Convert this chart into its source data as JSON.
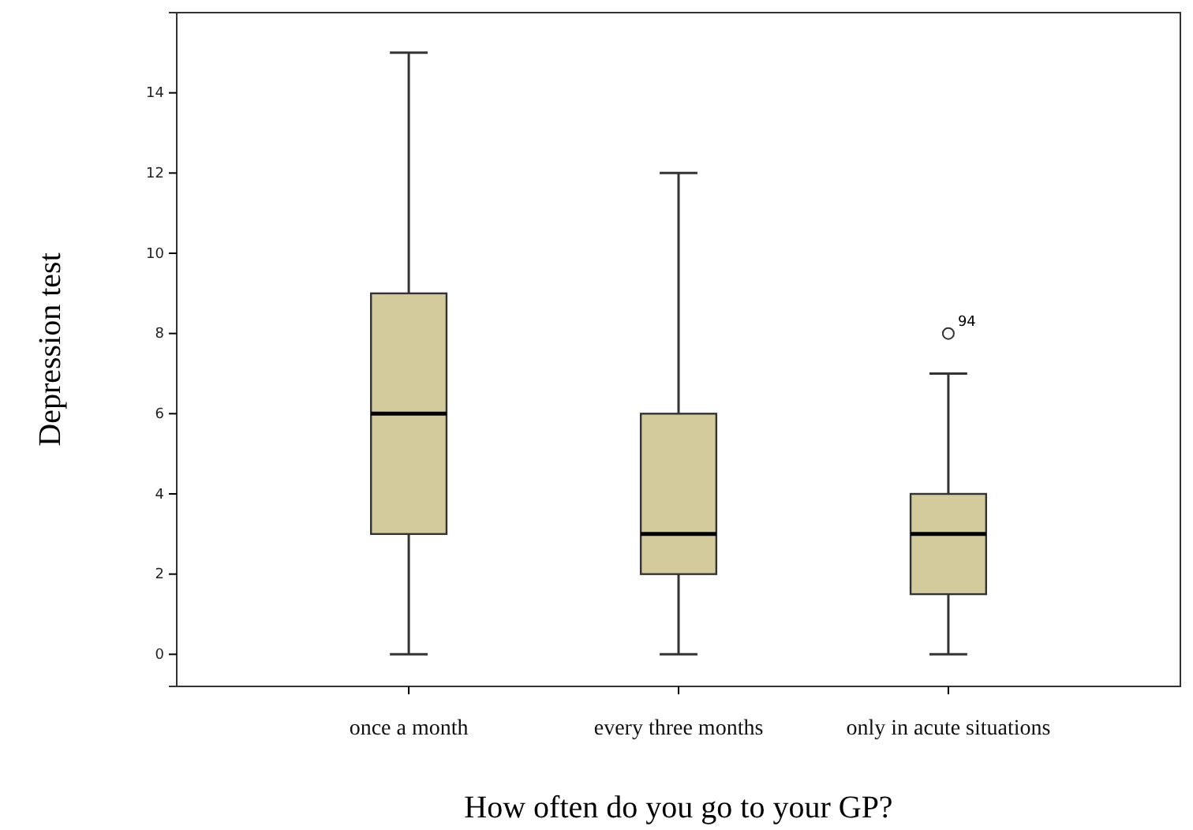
{
  "chart_data": {
    "type": "box",
    "xlabel": "How often do you go to your GP?",
    "ylabel": "Depression test",
    "categories": [
      "once a month",
      "every three months",
      "only in acute situations"
    ],
    "color": "#d3cb9b",
    "boxes": [
      {
        "low": 0,
        "q1": 3,
        "median": 6,
        "q3": 9,
        "high": 15
      },
      {
        "low": 0,
        "q1": 2,
        "median": 3,
        "q3": 6,
        "high": 12
      },
      {
        "low": 0,
        "q1": 1.5,
        "median": 3,
        "q3": 4,
        "high": 7,
        "outliers": [
          8
        ]
      }
    ],
    "annotations": [
      "94"
    ],
    "ylim": [
      -0.8,
      16
    ],
    "yticks": [
      0,
      2,
      4,
      6,
      8,
      10,
      12,
      14
    ],
    "grid": false
  }
}
